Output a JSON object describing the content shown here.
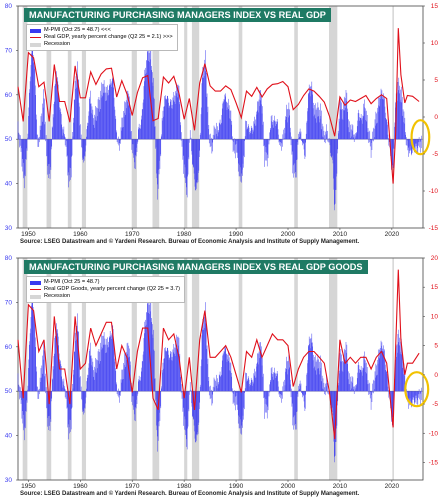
{
  "colors": {
    "title_bg": "#1f7a64",
    "pmi_bar": "#3a3af0",
    "gdp_line": "#e0101a",
    "recession": "#d6d6d6",
    "highlight": "#f2c200"
  },
  "chart_data": [
    {
      "type": "bar",
      "title": "MANUFACTURING PURCHASING MANAGERS INDEX VS REAL GDP",
      "legend": [
        "M-PMI (Oct 25 = 48.7) <<<",
        "Real GDP, yearly percent change (Q2 25 = 2.1) >>>",
        "Recession"
      ],
      "source": "Source: LSEG Datastream and © Yardeni Research. Bureau of Economic Analysis and Institute of Supply Management.",
      "left_axis": {
        "ticks": [
          "80",
          "70",
          "60",
          "50",
          "40",
          "30"
        ],
        "range": [
          30,
          80
        ],
        "baseline": 50
      },
      "right_axis": {
        "ticks": [
          "15",
          "10",
          "5",
          "0",
          "-5",
          "-10",
          "-15"
        ],
        "range": [
          -15,
          15
        ]
      },
      "x_ticks": [
        "1950",
        "1960",
        "1970",
        "1980",
        "1990",
        "2000",
        "2010",
        "2020"
      ],
      "x_range": [
        1948,
        2026
      ],
      "recessions": [
        [
          1948.9,
          1949.8
        ],
        [
          1953.5,
          1954.4
        ],
        [
          1957.6,
          1958.3
        ],
        [
          1960.3,
          1961.1
        ],
        [
          1969.9,
          1970.9
        ],
        [
          1973.9,
          1975.2
        ],
        [
          1980.0,
          1980.6
        ],
        [
          1981.5,
          1982.9
        ],
        [
          1990.5,
          1991.2
        ],
        [
          2001.2,
          2001.9
        ],
        [
          2007.9,
          2009.5
        ],
        [
          2020.1,
          2020.4
        ]
      ],
      "pmi_series": [
        [
          1948,
          52
        ],
        [
          1948.6,
          48
        ],
        [
          1949.2,
          40
        ],
        [
          1949.7,
          47
        ],
        [
          1950.2,
          60
        ],
        [
          1950.7,
          72
        ],
        [
          1951.2,
          66
        ],
        [
          1951.8,
          48
        ],
        [
          1952.4,
          53
        ],
        [
          1953,
          60
        ],
        [
          1953.6,
          44
        ],
        [
          1954.2,
          42
        ],
        [
          1954.8,
          56
        ],
        [
          1955.4,
          66
        ],
        [
          1956,
          58
        ],
        [
          1956.6,
          52
        ],
        [
          1957.2,
          50
        ],
        [
          1957.8,
          40
        ],
        [
          1958.3,
          44
        ],
        [
          1958.9,
          60
        ],
        [
          1959.5,
          66
        ],
        [
          1960.1,
          50
        ],
        [
          1960.7,
          44
        ],
        [
          1961.3,
          52
        ],
        [
          1961.9,
          60
        ],
        [
          1962.5,
          54
        ],
        [
          1963.1,
          56
        ],
        [
          1963.7,
          58
        ],
        [
          1964.3,
          62
        ],
        [
          1965,
          60
        ],
        [
          1965.7,
          62
        ],
        [
          1966.3,
          64
        ],
        [
          1966.9,
          52
        ],
        [
          1967.5,
          48
        ],
        [
          1968.1,
          54
        ],
        [
          1968.8,
          58
        ],
        [
          1969.4,
          60
        ],
        [
          1970,
          48
        ],
        [
          1970.6,
          44
        ],
        [
          1971.2,
          52
        ],
        [
          1971.8,
          54
        ],
        [
          1972.4,
          64
        ],
        [
          1973,
          70
        ],
        [
          1973.6,
          68
        ],
        [
          1974.2,
          60
        ],
        [
          1974.8,
          38
        ],
        [
          1975.3,
          44
        ],
        [
          1975.9,
          56
        ],
        [
          1976.5,
          60
        ],
        [
          1977.1,
          58
        ],
        [
          1977.7,
          58
        ],
        [
          1978.3,
          60
        ],
        [
          1978.9,
          62
        ],
        [
          1979.5,
          50
        ],
        [
          1980.1,
          42
        ],
        [
          1980.6,
          38
        ],
        [
          1981.1,
          52
        ],
        [
          1981.7,
          44
        ],
        [
          1982.3,
          38
        ],
        [
          1982.9,
          44
        ],
        [
          1983.5,
          64
        ],
        [
          1984.1,
          68
        ],
        [
          1984.7,
          52
        ],
        [
          1985.3,
          48
        ],
        [
          1985.9,
          52
        ],
        [
          1986.5,
          52
        ],
        [
          1987.1,
          54
        ],
        [
          1987.7,
          60
        ],
        [
          1988.3,
          58
        ],
        [
          1988.9,
          56
        ],
        [
          1989.5,
          48
        ],
        [
          1990.1,
          48
        ],
        [
          1990.7,
          42
        ],
        [
          1991.3,
          42
        ],
        [
          1991.9,
          54
        ],
        [
          1992.5,
          52
        ],
        [
          1993.1,
          52
        ],
        [
          1993.7,
          54
        ],
        [
          1994.3,
          58
        ],
        [
          1994.9,
          60
        ],
        [
          1995.5,
          46
        ],
        [
          1996.1,
          46
        ],
        [
          1996.7,
          54
        ],
        [
          1997.3,
          54
        ],
        [
          1997.9,
          54
        ],
        [
          1998.5,
          48
        ],
        [
          1999.1,
          50
        ],
        [
          1999.7,
          56
        ],
        [
          2000.3,
          56
        ],
        [
          2000.9,
          44
        ],
        [
          2001.5,
          42
        ],
        [
          2002.1,
          52
        ],
        [
          2002.7,
          50
        ],
        [
          2003.3,
          46
        ],
        [
          2003.9,
          60
        ],
        [
          2004.5,
          62
        ],
        [
          2005.1,
          56
        ],
        [
          2005.7,
          56
        ],
        [
          2006.3,
          56
        ],
        [
          2006.9,
          50
        ],
        [
          2007.5,
          52
        ],
        [
          2008.1,
          48
        ],
        [
          2008.7,
          44
        ],
        [
          2009.0,
          33
        ],
        [
          2009.5,
          46
        ],
        [
          2010,
          58
        ],
        [
          2010.6,
          56
        ],
        [
          2011.2,
          60
        ],
        [
          2011.8,
          52
        ],
        [
          2012.4,
          52
        ],
        [
          2013,
          50
        ],
        [
          2013.6,
          56
        ],
        [
          2014.2,
          54
        ],
        [
          2014.8,
          58
        ],
        [
          2015.4,
          52
        ],
        [
          2016,
          48
        ],
        [
          2016.6,
          52
        ],
        [
          2017.2,
          56
        ],
        [
          2017.8,
          60
        ],
        [
          2018.4,
          60
        ],
        [
          2019,
          54
        ],
        [
          2019.6,
          48
        ],
        [
          2020.2,
          42
        ],
        [
          2020.6,
          56
        ],
        [
          2021.2,
          62
        ],
        [
          2021.8,
          60
        ],
        [
          2022.4,
          54
        ],
        [
          2023,
          48
        ],
        [
          2023.6,
          47
        ],
        [
          2024.2,
          48
        ],
        [
          2024.8,
          48
        ],
        [
          2025.4,
          49
        ],
        [
          2025.8,
          48.7
        ]
      ],
      "gdp_series": [
        [
          1948,
          4.1
        ],
        [
          1949,
          -0.6
        ],
        [
          1950,
          8.7
        ],
        [
          1951,
          8.0
        ],
        [
          1952,
          4.1
        ],
        [
          1953,
          4.7
        ],
        [
          1954,
          -0.6
        ],
        [
          1955,
          7.1
        ],
        [
          1956,
          2.1
        ],
        [
          1957,
          2.1
        ],
        [
          1958,
          -0.7
        ],
        [
          1959,
          6.9
        ],
        [
          1960,
          2.6
        ],
        [
          1961,
          2.6
        ],
        [
          1962,
          6.1
        ],
        [
          1963,
          4.4
        ],
        [
          1964,
          5.8
        ],
        [
          1965,
          6.5
        ],
        [
          1966,
          6.6
        ],
        [
          1967,
          2.7
        ],
        [
          1968,
          4.9
        ],
        [
          1969,
          3.1
        ],
        [
          1970,
          0.2
        ],
        [
          1971,
          3.3
        ],
        [
          1972,
          5.3
        ],
        [
          1973,
          5.6
        ],
        [
          1974,
          -0.5
        ],
        [
          1975,
          -0.2
        ],
        [
          1976,
          5.4
        ],
        [
          1977,
          4.6
        ],
        [
          1978,
          5.5
        ],
        [
          1979,
          3.2
        ],
        [
          1980,
          -0.3
        ],
        [
          1981,
          2.5
        ],
        [
          1982,
          -1.8
        ],
        [
          1983,
          4.6
        ],
        [
          1984,
          7.2
        ],
        [
          1985,
          4.2
        ],
        [
          1986,
          3.5
        ],
        [
          1987,
          3.5
        ],
        [
          1988,
          4.2
        ],
        [
          1989,
          3.7
        ],
        [
          1990,
          1.9
        ],
        [
          1991,
          -0.1
        ],
        [
          1992,
          3.5
        ],
        [
          1993,
          2.8
        ],
        [
          1994,
          4.0
        ],
        [
          1995,
          2.7
        ],
        [
          1996,
          3.8
        ],
        [
          1997,
          4.4
        ],
        [
          1998,
          4.5
        ],
        [
          1999,
          4.8
        ],
        [
          2000,
          4.1
        ],
        [
          2001,
          1.0
        ],
        [
          2002,
          1.7
        ],
        [
          2003,
          2.9
        ],
        [
          2004,
          3.8
        ],
        [
          2005,
          3.5
        ],
        [
          2006,
          2.8
        ],
        [
          2007,
          2.0
        ],
        [
          2008,
          0.1
        ],
        [
          2009,
          -2.6
        ],
        [
          2010,
          2.7
        ],
        [
          2011,
          1.6
        ],
        [
          2012,
          2.3
        ],
        [
          2013,
          2.1
        ],
        [
          2014,
          2.5
        ],
        [
          2015,
          2.9
        ],
        [
          2016,
          1.8
        ],
        [
          2017,
          2.5
        ],
        [
          2018,
          3.0
        ],
        [
          2019,
          2.5
        ],
        [
          2020.25,
          -9.0
        ],
        [
          2020.75,
          -2.0
        ],
        [
          2021.25,
          12.0
        ],
        [
          2021.75,
          5.7
        ],
        [
          2022.5,
          1.9
        ],
        [
          2023,
          2.9
        ],
        [
          2024,
          2.8
        ],
        [
          2025.25,
          2.1
        ]
      ],
      "highlight_range": [
        2023.8,
        2027.2
      ]
    },
    {
      "type": "bar",
      "title": "MANUFACTURING PURCHASING MANAGERS INDEX VS REAL GDP GOODS",
      "legend": [
        "M-PMI (Oct 25 = 48.7)",
        "Real GDP Goods, yearly percent change (Q2 25 = 3.7)",
        "Recession"
      ],
      "source": "Source: LSEG Datastream and © Yardeni Research. Bureau of Economic Analysis and Institute of Supply Management.",
      "left_axis": {
        "ticks": [
          "80",
          "70",
          "60",
          "50",
          "40",
          "30"
        ],
        "range": [
          30,
          80
        ],
        "baseline": 50
      },
      "right_axis": {
        "ticks": [
          "20",
          "15",
          "10",
          "5",
          "0",
          "-5",
          "-10",
          "-15"
        ],
        "range": [
          -18,
          20
        ]
      },
      "x_ticks": [
        "1950",
        "1960",
        "1970",
        "1980",
        "1990",
        "2000",
        "2010",
        "2020"
      ],
      "x_range": [
        1948,
        2026
      ],
      "recessions": [
        [
          1948.9,
          1949.8
        ],
        [
          1953.5,
          1954.4
        ],
        [
          1957.6,
          1958.3
        ],
        [
          1960.3,
          1961.1
        ],
        [
          1969.9,
          1970.9
        ],
        [
          1973.9,
          1975.2
        ],
        [
          1980.0,
          1980.6
        ],
        [
          1981.5,
          1982.9
        ],
        [
          1990.5,
          1991.2
        ],
        [
          2001.2,
          2001.9
        ],
        [
          2007.9,
          2009.5
        ],
        [
          2020.1,
          2020.4
        ]
      ],
      "pmi_series": "same",
      "gdp_series": [
        [
          1948,
          6
        ],
        [
          1949,
          -4
        ],
        [
          1950,
          12
        ],
        [
          1951,
          11
        ],
        [
          1952,
          4
        ],
        [
          1953,
          6
        ],
        [
          1954,
          -5
        ],
        [
          1955,
          10
        ],
        [
          1956,
          1
        ],
        [
          1957,
          1
        ],
        [
          1958,
          -5
        ],
        [
          1959,
          10
        ],
        [
          1960,
          1
        ],
        [
          1961,
          2
        ],
        [
          1962,
          8
        ],
        [
          1963,
          5
        ],
        [
          1964,
          7
        ],
        [
          1965,
          9
        ],
        [
          1966,
          9
        ],
        [
          1967,
          1
        ],
        [
          1968,
          5
        ],
        [
          1969,
          3
        ],
        [
          1970,
          -3
        ],
        [
          1971,
          4
        ],
        [
          1972,
          8
        ],
        [
          1973,
          8
        ],
        [
          1974,
          -4
        ],
        [
          1975,
          -6
        ],
        [
          1976,
          8
        ],
        [
          1977,
          6
        ],
        [
          1978,
          7
        ],
        [
          1979,
          3
        ],
        [
          1980,
          -4
        ],
        [
          1981,
          3
        ],
        [
          1982,
          -6
        ],
        [
          1983,
          6
        ],
        [
          1984,
          11
        ],
        [
          1985,
          3
        ],
        [
          1986,
          3
        ],
        [
          1987,
          4
        ],
        [
          1988,
          5
        ],
        [
          1989,
          3
        ],
        [
          1990,
          0
        ],
        [
          1991,
          -3
        ],
        [
          1992,
          4
        ],
        [
          1993,
          3
        ],
        [
          1994,
          6
        ],
        [
          1995,
          3
        ],
        [
          1996,
          5
        ],
        [
          1997,
          7
        ],
        [
          1998,
          6
        ],
        [
          1999,
          6
        ],
        [
          2000,
          5
        ],
        [
          2001,
          -2
        ],
        [
          2002,
          1
        ],
        [
          2003,
          3
        ],
        [
          2004,
          4
        ],
        [
          2005,
          4
        ],
        [
          2006,
          3
        ],
        [
          2007,
          2
        ],
        [
          2008,
          -3
        ],
        [
          2009,
          -11
        ],
        [
          2010,
          6
        ],
        [
          2011,
          2
        ],
        [
          2012,
          3
        ],
        [
          2013,
          2
        ],
        [
          2014,
          3
        ],
        [
          2015,
          3
        ],
        [
          2016,
          1
        ],
        [
          2017,
          3
        ],
        [
          2018,
          4
        ],
        [
          2019,
          2
        ],
        [
          2020.25,
          -9
        ],
        [
          2020.75,
          5
        ],
        [
          2021.25,
          18
        ],
        [
          2021.75,
          6
        ],
        [
          2022.5,
          0
        ],
        [
          2023,
          2
        ],
        [
          2024,
          2
        ],
        [
          2025.25,
          3.7
        ]
      ],
      "highlight_range": [
        2022.6,
        2027.0
      ]
    }
  ]
}
